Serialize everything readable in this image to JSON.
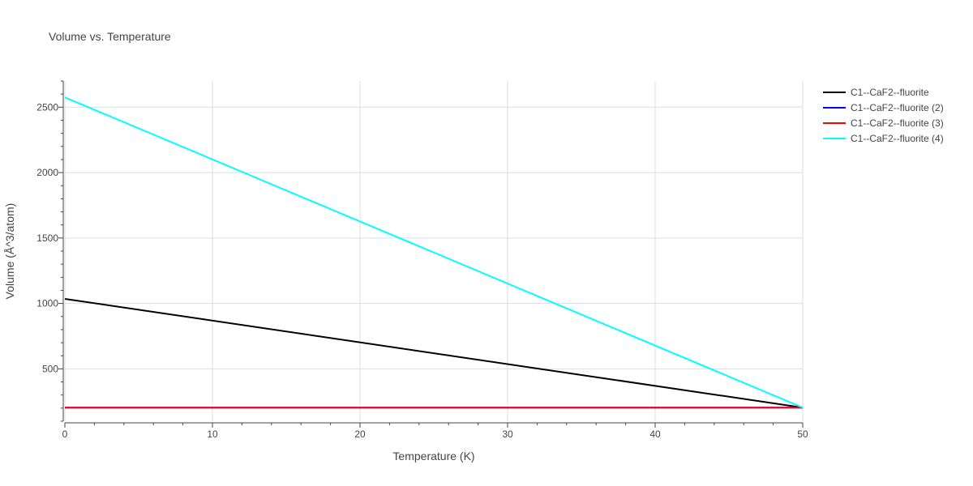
{
  "chart_data": {
    "type": "line",
    "title": "Volume vs. Temperature",
    "xlabel": "Temperature (K)",
    "ylabel": "Volume (Å^3/atom)",
    "xlim": [
      0,
      50
    ],
    "ylim": [
      100,
      2700
    ],
    "xticks": [
      0,
      10,
      20,
      30,
      40,
      50
    ],
    "yticks": [
      500,
      1000,
      1500,
      2000,
      2500
    ],
    "grid": true,
    "legend_position": "top-right",
    "series": [
      {
        "name": "C1--CaF2--fluorite",
        "color": "#000000",
        "x": [
          0,
          50
        ],
        "y": [
          1035,
          204
        ]
      },
      {
        "name": "C1--CaF2--fluorite (2)",
        "color": "#0000ff",
        "x": [
          0,
          50
        ],
        "y": [
          204,
          204
        ]
      },
      {
        "name": "C1--CaF2--fluorite (3)",
        "color": "#ff0000",
        "x": [
          0,
          50
        ],
        "y": [
          204,
          204
        ]
      },
      {
        "name": "C1--CaF2--fluorite (4)",
        "color": "#00ffff",
        "x": [
          0,
          50
        ],
        "y": [
          2575,
          204
        ]
      }
    ]
  }
}
